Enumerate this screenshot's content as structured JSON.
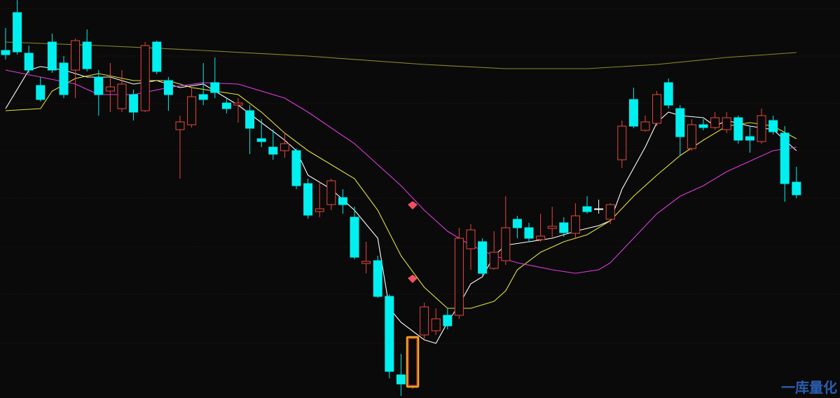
{
  "chart_data": {
    "type": "candlestick",
    "ylim": [
      17.3,
      23.0
    ],
    "open": [
      22.28,
      22.82,
      22.24,
      21.78,
      22.4,
      22.1,
      22.0,
      22.4,
      21.9,
      21.7,
      21.45,
      21.65,
      21.42,
      22.4,
      21.85,
      21.15,
      21.22,
      21.65,
      21.82,
      21.53,
      21.5,
      21.42,
      21.02,
      20.9,
      20.85,
      20.85,
      20.38,
      19.98,
      20.08,
      20.18,
      19.9,
      19.24,
      19.28,
      18.77,
      17.65,
      17.5,
      18.22,
      18.28,
      18.5,
      18.5,
      19.45,
      19.55,
      19.17,
      19.28,
      19.87,
      19.75,
      19.58,
      19.74,
      19.82,
      19.67,
      20.05,
      20.02,
      19.87,
      20.72,
      21.58,
      21.14,
      21.24,
      21.82,
      21.45,
      20.88,
      21.22,
      21.18,
      21.15,
      21.32,
      21.05,
      20.98,
      21.28,
      21.1,
      20.4
    ],
    "close": [
      22.22,
      22.26,
      22.0,
      21.58,
      22.0,
      21.65,
      22.42,
      22.02,
      21.65,
      21.76,
      21.8,
      21.4,
      22.35,
      21.98,
      21.65,
      21.26,
      21.62,
      21.58,
      21.68,
      21.45,
      21.53,
      21.17,
      20.98,
      20.8,
      20.95,
      20.35,
      19.93,
      20.02,
      20.42,
      20.08,
      19.33,
      19.27,
      18.77,
      17.7,
      17.52,
      18.17,
      18.62,
      18.45,
      18.35,
      19.6,
      19.72,
      19.1,
      19.4,
      19.75,
      19.75,
      19.6,
      19.63,
      19.77,
      19.68,
      19.92,
      19.98,
      20.02,
      20.08,
      21.2,
      21.2,
      21.26,
      21.65,
      21.5,
      21.05,
      21.22,
      21.18,
      21.32,
      21.32,
      21.0,
      21.0,
      21.35,
      21.12,
      20.38,
      20.22
    ],
    "high": [
      22.6,
      23.0,
      22.35,
      21.9,
      22.52,
      22.2,
      22.45,
      22.58,
      22.0,
      22.1,
      22.0,
      21.72,
      22.4,
      22.42,
      21.9,
      21.35,
      21.75,
      22.1,
      22.18,
      21.6,
      21.6,
      21.5,
      21.3,
      21.15,
      21.1,
      20.88,
      20.45,
      20.4,
      20.45,
      20.3,
      20.05,
      19.55,
      19.35,
      18.8,
      17.95,
      18.2,
      18.68,
      18.6,
      18.6,
      19.75,
      19.8,
      19.6,
      19.7,
      20.2,
      19.92,
      19.82,
      19.95,
      20.05,
      19.9,
      20.1,
      20.2,
      20.15,
      20.1,
      21.28,
      21.75,
      21.35,
      21.7,
      21.88,
      21.5,
      21.3,
      21.3,
      21.4,
      21.4,
      21.35,
      21.2,
      21.45,
      21.35,
      21.2,
      20.62
    ],
    "low": [
      22.15,
      22.22,
      21.95,
      21.55,
      21.96,
      21.6,
      21.6,
      21.98,
      21.35,
      21.4,
      21.4,
      21.28,
      21.4,
      21.94,
      21.42,
      20.45,
      21.18,
      21.5,
      21.6,
      21.38,
      21.25,
      20.8,
      20.9,
      20.72,
      20.75,
      20.3,
      19.88,
      19.9,
      20.0,
      19.95,
      19.3,
      19.1,
      18.75,
      17.6,
      17.35,
      17.45,
      18.15,
      18.22,
      18.3,
      18.45,
      19.15,
      19.07,
      19.15,
      19.22,
      19.6,
      19.55,
      19.55,
      19.6,
      19.62,
      19.6,
      19.95,
      19.95,
      19.8,
      20.6,
      21.17,
      21.12,
      21.2,
      21.45,
      20.78,
      20.85,
      21.14,
      21.15,
      21.1,
      20.95,
      20.82,
      20.95,
      21.08,
      20.12,
      20.17
    ],
    "up_color": "#e8473f",
    "down_color": "#00f0f0",
    "flat_color": "#ffffff",
    "highlight_index": 35,
    "highlight_color": "#f5a623",
    "series": [
      {
        "color": "#ffffff",
        "x": [
          0,
          2,
          3,
          5,
          7,
          9,
          11,
          13,
          15,
          17,
          20,
          22,
          24,
          25,
          26,
          28,
          30,
          32,
          33,
          34,
          36,
          37,
          38,
          39,
          40,
          41,
          42,
          43,
          45,
          47,
          49,
          51,
          52,
          53,
          55,
          56,
          57,
          58,
          60,
          61,
          62,
          64,
          66,
          67,
          68
        ],
        "values": [
          21.45,
          22.0,
          22.05,
          22.0,
          21.9,
          21.9,
          21.8,
          21.85,
          21.75,
          21.8,
          21.5,
          21.25,
          21.0,
          20.85,
          20.5,
          20.3,
          20.0,
          19.6,
          18.6,
          18.4,
          18.15,
          18.1,
          18.4,
          18.65,
          18.95,
          19.05,
          19.35,
          19.5,
          19.55,
          19.6,
          19.7,
          19.78,
          19.85,
          20.3,
          20.9,
          21.25,
          21.4,
          21.35,
          21.32,
          21.2,
          21.28,
          21.2,
          21.15,
          21.0,
          20.85
        ]
      },
      {
        "color": "#e6e23a",
        "x": [
          0,
          3,
          4,
          6,
          8,
          11,
          14,
          16,
          18,
          20,
          22,
          24,
          26,
          28,
          30,
          32,
          34,
          36,
          38,
          40,
          42,
          43,
          44,
          46,
          48,
          50,
          52,
          54,
          56,
          58,
          60,
          62,
          64,
          66,
          68
        ],
        "values": [
          21.42,
          21.45,
          21.7,
          21.88,
          21.95,
          21.85,
          21.85,
          21.75,
          21.7,
          21.65,
          21.4,
          21.1,
          20.85,
          20.65,
          20.45,
          20.0,
          19.35,
          18.9,
          18.6,
          18.6,
          18.7,
          18.85,
          19.15,
          19.4,
          19.55,
          19.65,
          19.85,
          20.2,
          20.5,
          20.78,
          21.0,
          21.2,
          21.25,
          21.2,
          21.02
        ]
      },
      {
        "color": "#e03be0",
        "x": [
          0,
          3,
          6,
          8,
          11,
          14,
          17,
          20,
          24,
          26,
          30,
          32,
          34,
          36,
          38,
          40,
          42,
          44,
          47,
          49,
          51,
          52,
          54,
          56,
          58,
          60,
          62,
          64,
          66,
          68
        ],
        "values": [
          22.0,
          21.9,
          21.8,
          21.65,
          21.65,
          21.75,
          21.82,
          21.8,
          21.6,
          21.4,
          20.95,
          20.65,
          20.35,
          20.0,
          19.7,
          19.5,
          19.35,
          19.25,
          19.15,
          19.1,
          19.15,
          19.25,
          19.6,
          19.95,
          20.2,
          20.35,
          20.55,
          20.7,
          20.85,
          20.9
        ]
      },
      {
        "color": "#8a8a2a",
        "x": [
          0,
          8,
          17,
          26,
          36,
          43,
          50,
          56,
          62,
          68
        ],
        "values": [
          22.4,
          22.35,
          22.28,
          22.2,
          22.08,
          22.02,
          22.02,
          22.08,
          22.18,
          22.25
        ]
      }
    ],
    "watermark": "一库量化"
  }
}
